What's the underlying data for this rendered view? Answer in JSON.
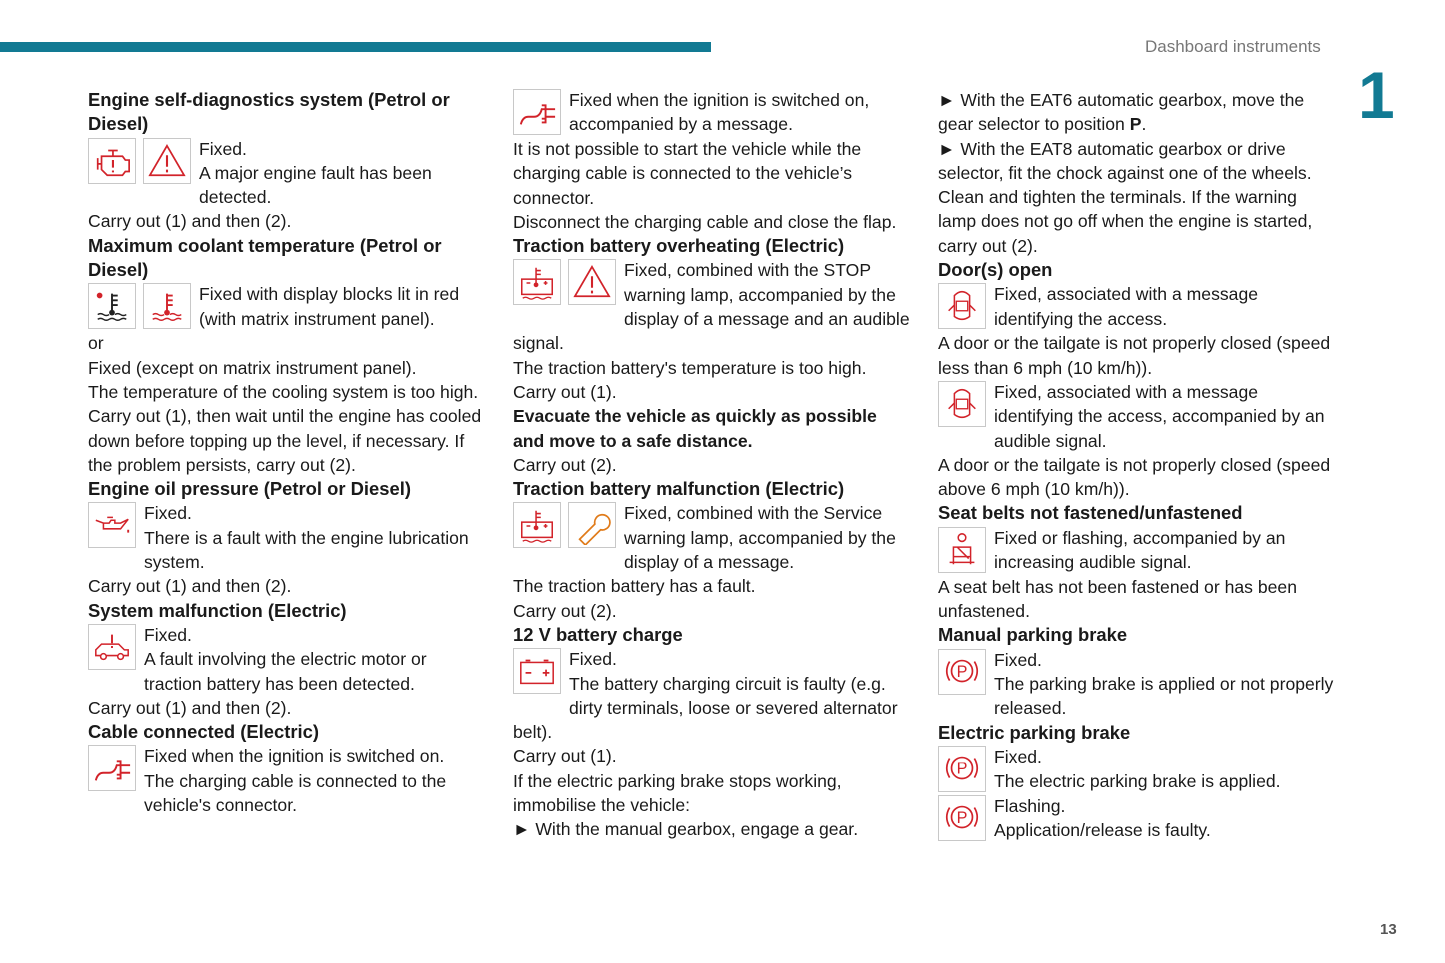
{
  "header": {
    "section_title": "Dashboard instruments",
    "chapter_number": "1",
    "page_number": "13",
    "accent_color": "#127a93",
    "icon_red": "#d2232a"
  },
  "columns": [
    {
      "blocks": [
        {
          "type": "h",
          "text": "Engine self-diagnostics system (Petrol or Diesel)"
        },
        {
          "type": "icons",
          "icons": [
            "engine-icon",
            "warning-triangle-icon"
          ],
          "paras": [
            "Fixed.",
            "A major engine fault has been detected."
          ]
        },
        {
          "type": "p",
          "text": "Carry out (1) and then (2)."
        },
        {
          "type": "h",
          "text": "Maximum coolant temperature (Petrol or Diesel)"
        },
        {
          "type": "icons",
          "icons": [
            "coolant-temperature-black-icon",
            "coolant-temperature-red-icon"
          ],
          "paras": [
            "Fixed with display blocks lit in red (with matrix instrument panel)."
          ]
        },
        {
          "type": "p",
          "text": "or"
        },
        {
          "type": "p",
          "text": "Fixed (except on matrix instrument panel)."
        },
        {
          "type": "p",
          "text": "The temperature of the cooling system is too high."
        },
        {
          "type": "p",
          "text": "Carry out (1), then wait until the engine has cooled down before topping up the level, if necessary. If the problem persists, carry out (2)."
        },
        {
          "type": "h",
          "text": "Engine oil pressure (Petrol or Diesel)"
        },
        {
          "type": "icons",
          "icons": [
            "oil-can-icon"
          ],
          "paras": [
            "Fixed.",
            "There is a fault with the engine lubrication system."
          ]
        },
        {
          "type": "p",
          "text": "Carry out (1) and then (2)."
        },
        {
          "type": "h",
          "text": "System malfunction (Electric)"
        },
        {
          "type": "icons",
          "icons": [
            "electric-car-fault-icon"
          ],
          "paras": [
            "Fixed.",
            "A fault involving the electric motor or traction battery has been detected."
          ]
        },
        {
          "type": "p",
          "text": "Carry out (1) and then (2)."
        },
        {
          "type": "h",
          "text": "Cable connected (Electric)"
        },
        {
          "type": "icons",
          "icons": [
            "charging-plug-icon"
          ],
          "paras": [
            "Fixed when the ignition is switched on.",
            "The charging cable is connected to the vehicle's connector."
          ]
        }
      ]
    },
    {
      "blocks": [
        {
          "type": "icons",
          "icons": [
            "charging-plug-icon"
          ],
          "paras": [
            "Fixed when the ignition is switched on, accompanied by a message."
          ]
        },
        {
          "type": "p",
          "text": "It is not possible to start the vehicle while the charging cable is connected to the vehicle’s connector."
        },
        {
          "type": "p",
          "text": "Disconnect the charging cable and close the flap."
        },
        {
          "type": "h",
          "text": "Traction battery overheating (Electric)"
        },
        {
          "type": "icons",
          "icons": [
            "battery-temperature-icon",
            "warning-triangle-icon"
          ],
          "paras": [
            "Fixed, combined with the STOP warning lamp, accompanied by the display of a message and an audible signal."
          ]
        },
        {
          "type": "p",
          "text": "The traction battery's temperature is too high."
        },
        {
          "type": "p",
          "text": "Carry out (1)."
        },
        {
          "type": "pb",
          "text": "Evacuate the vehicle as quickly as possible and move to a safe distance."
        },
        {
          "type": "p",
          "text": "Carry out (2)."
        },
        {
          "type": "h",
          "text": "Traction battery malfunction (Electric)"
        },
        {
          "type": "icons",
          "icons": [
            "battery-temperature-icon",
            "wrench-service-icon"
          ],
          "paras": [
            "Fixed, combined with the Service warning lamp, accompanied by the display of a message."
          ]
        },
        {
          "type": "p",
          "text": "The traction battery has a fault."
        },
        {
          "type": "p",
          "text": "Carry out (2)."
        },
        {
          "type": "h",
          "text": "12 V battery charge"
        },
        {
          "type": "icons",
          "icons": [
            "battery-icon"
          ],
          "paras": [
            "Fixed.",
            "The battery charging circuit is faulty (e.g. dirty terminals, loose or severed alternator belt)."
          ]
        },
        {
          "type": "p",
          "text": "Carry out (1)."
        },
        {
          "type": "p",
          "text": "If the electric parking brake stops working, immobilise the vehicle:"
        },
        {
          "type": "bullet",
          "segments": [
            {
              "t": "With the manual gearbox, engage a gear."
            }
          ]
        }
      ]
    },
    {
      "blocks": [
        {
          "type": "bullet",
          "segments": [
            {
              "t": "With the EAT6 automatic gearbox, move the gear selector to position "
            },
            {
              "t": "P",
              "bold": true
            },
            {
              "t": "."
            }
          ]
        },
        {
          "type": "bullet",
          "segments": [
            {
              "t": "With the EAT8 automatic gearbox or drive selector, fit the chock against one of the wheels."
            }
          ]
        },
        {
          "type": "p",
          "text": "Clean and tighten the terminals. If the warning lamp does not go off when the engine is started, carry out (2)."
        },
        {
          "type": "h",
          "text": "Door(s) open"
        },
        {
          "type": "icons",
          "icons": [
            "door-open-icon"
          ],
          "paras": [
            "Fixed, associated with a message identifying the access."
          ]
        },
        {
          "type": "p",
          "text": "A door or the tailgate is not properly closed (speed less than 6 mph (10 km/h))."
        },
        {
          "type": "icons",
          "icons": [
            "door-open-icon"
          ],
          "paras": [
            "Fixed, associated with a message identifying the access, accompanied by an audible signal."
          ]
        },
        {
          "type": "p",
          "text": "A door or the tailgate is not properly closed (speed above 6 mph (10 km/h))."
        },
        {
          "type": "h",
          "text": "Seat belts not fastened/unfastened"
        },
        {
          "type": "icons",
          "icons": [
            "seatbelt-icon"
          ],
          "paras": [
            "Fixed or flashing, accompanied by an increasing audible signal."
          ]
        },
        {
          "type": "p",
          "text": "A seat belt has not been fastened or has been unfastened."
        },
        {
          "type": "h",
          "text": "Manual parking brake"
        },
        {
          "type": "icons",
          "icons": [
            "parking-brake-icon"
          ],
          "paras": [
            "Fixed.",
            "The parking brake is applied or not properly released."
          ]
        },
        {
          "type": "h",
          "text": "Electric parking brake"
        },
        {
          "type": "icons",
          "icons": [
            "parking-brake-icon"
          ],
          "paras": [
            "Fixed.",
            "The electric parking brake is applied."
          ]
        },
        {
          "type": "icons",
          "icons": [
            "parking-brake-icon"
          ],
          "paras": [
            "Flashing.",
            "Application/release is faulty."
          ]
        }
      ]
    }
  ]
}
